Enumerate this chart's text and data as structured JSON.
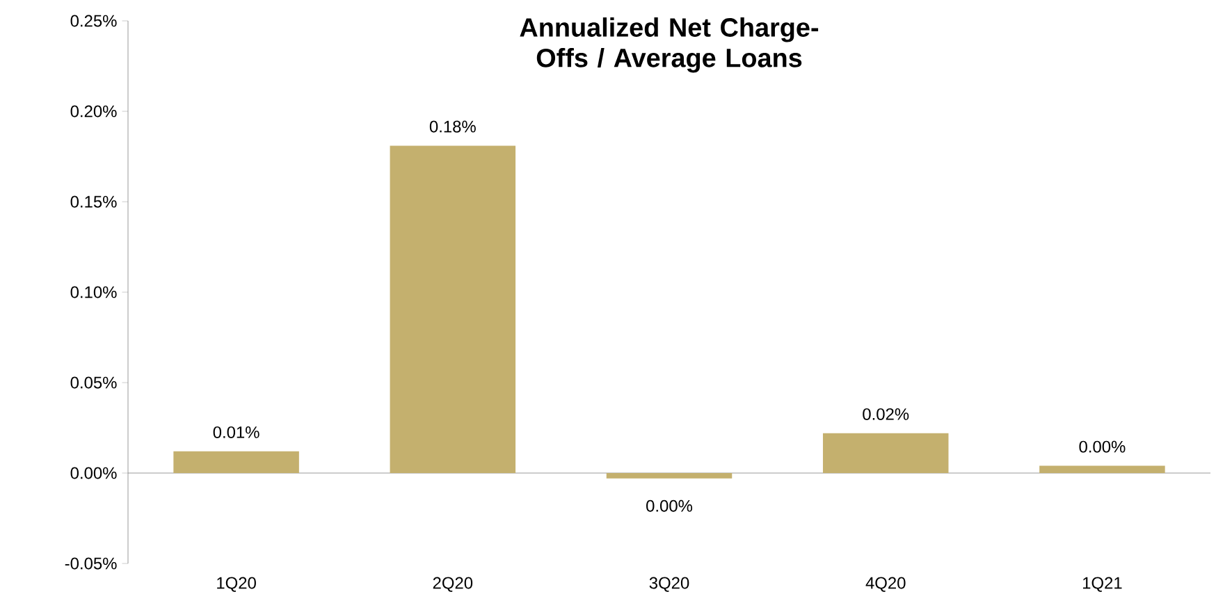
{
  "chart_data": {
    "type": "bar",
    "title": "Annualized Net Charge-Offs / Average Loans",
    "categories": [
      "1Q20",
      "2Q20",
      "3Q20",
      "4Q20",
      "1Q21"
    ],
    "values": [
      0.012,
      0.181,
      -0.003,
      0.022,
      0.004
    ],
    "value_labels": [
      "0.01%",
      "0.18%",
      "0.00%",
      "0.02%",
      "0.00%"
    ],
    "color": "#c4b06e",
    "ylim": [
      -0.05,
      0.25
    ],
    "yticks": [
      {
        "value": -0.05,
        "label": "-0.05%"
      },
      {
        "value": 0,
        "label": "0.00%"
      },
      {
        "value": 0.05,
        "label": "0.05%"
      },
      {
        "value": 0.1,
        "label": "0.10%"
      },
      {
        "value": 0.15,
        "label": "0.15%"
      },
      {
        "value": 0.2,
        "label": "0.20%"
      },
      {
        "value": 0.25,
        "label": "0.25%"
      }
    ],
    "data_labels": false
  }
}
